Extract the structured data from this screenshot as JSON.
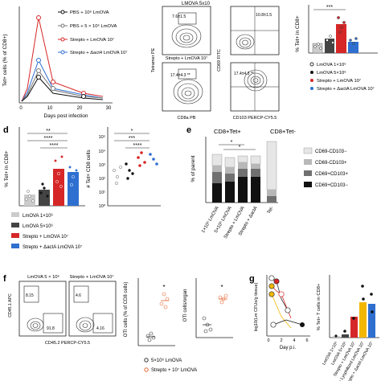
{
  "figure": {
    "panel_labels": {
      "d": "d",
      "e": "e",
      "f": "f",
      "g": "g"
    },
    "colors": {
      "red": "#d62728",
      "blue": "#2f6fd0",
      "grey": "#9a9a9a",
      "black": "#111111",
      "orange": "#e4662f",
      "yellow": "#f2b705"
    }
  },
  "panel_top_left": {
    "ylabel": "Tet+ cells (% of CD8+)",
    "xlabel": "Days post infection",
    "legend": [
      "PBS + 10⁶ LmOVA",
      "PBS + 5 × 10⁶ LmOVA",
      "Strepto + LmOVA 10⁷",
      "Strepto + Δact4 LmOVA 10⁷"
    ],
    "xticks": [
      "0",
      "10",
      "20",
      "30"
    ]
  },
  "panel_top_mid": {
    "header": "LMOVA 5x10",
    "subheader": "Strepto + LmOVA 10⁷",
    "gate_values": [
      "7.6±1.5",
      "17.4±4.3 **",
      "10.8±1.5",
      "17.4±4.3 **"
    ],
    "y_axis_label": "Tetramer PE",
    "x_axis_label": "CD8a PB",
    "y_axis_label_2": "CD69 FITC",
    "x_axis_label_2": "CD103 PERCP-CY5.5"
  },
  "panel_top_right": {
    "ylabel": "% Tet+ in CD8+",
    "significance": "***",
    "legend": [
      "LmOVA 1×10⁶",
      "LmOVA 5×10⁶",
      "Strepto + LmOVA 10⁷",
      "Strepto + ΔactA LmOVA 10⁷"
    ]
  },
  "panel_d": {
    "ylabel_left": "% Tet+ in CD8+",
    "ylabel_right": "# Tet+ CD8 cells",
    "yticks_right": [
      "10⁵",
      "10⁴",
      "10³",
      "10²",
      "10¹",
      "10⁰"
    ],
    "sig_left": [
      "**",
      "****",
      "****"
    ],
    "sig_right": [
      "*",
      "***",
      "****"
    ],
    "legend": [
      "LmOVA 1×10⁶",
      "LmOVA 5×10⁶",
      "Strepto + LmOVA 10⁷",
      "Strepto + ΔactA LmOVA 10⁷"
    ]
  },
  "panel_e": {
    "title_left": "CD8+Tet+",
    "title_right": "CD8+Tet-",
    "ylabel": "% of parent",
    "sig": [
      "*",
      "*"
    ],
    "categories": [
      "1×10⁶ LmOVA",
      "5×10⁶ LmOVA",
      "Strepto + LmOVA",
      "Strepto + ΔactA",
      "Tet-"
    ],
    "legend": [
      "CD69-CD103−",
      "CD69-CD103+",
      "CD69+CD103+",
      "CD69+CD103−"
    ]
  },
  "panel_f": {
    "flow_titles": [
      "LmOVA 5 × 10⁶",
      "Strepto + LmOVA 10⁷"
    ],
    "flow_gates": [
      "8.15",
      "91.8",
      "4.6",
      "4.16"
    ],
    "flow_ylabel": "CD45.1 APC",
    "flow_xlabel": "CD45.2 PERCP-CY5.5",
    "plot1_ylabel": "OTI cells (% of CD8 cells)",
    "plot2_ylabel": "OTI cells/organ",
    "sig": [
      "*",
      "*"
    ],
    "legend": [
      "5×10⁶ LmOVA",
      "Strepto + 10⁷ LmOVA"
    ]
  },
  "panel_g": {
    "ylabel": "log10(Lm CFUs/g tissue)",
    "xlabel": "Day p.i.",
    "xticks": [
      "0",
      "2",
      "4",
      "6"
    ],
    "ylabel_right": "% Tet+ T cells in CD8+",
    "categories": [
      "LmOVA 1×10⁶",
      "LmOVA 5×10⁶",
      "Strepto + LmOVA 10⁷",
      "Strepto + Lyophilized LmOVA 10⁷",
      "Strepto + ΔactA LmOVA 10⁷"
    ]
  }
}
